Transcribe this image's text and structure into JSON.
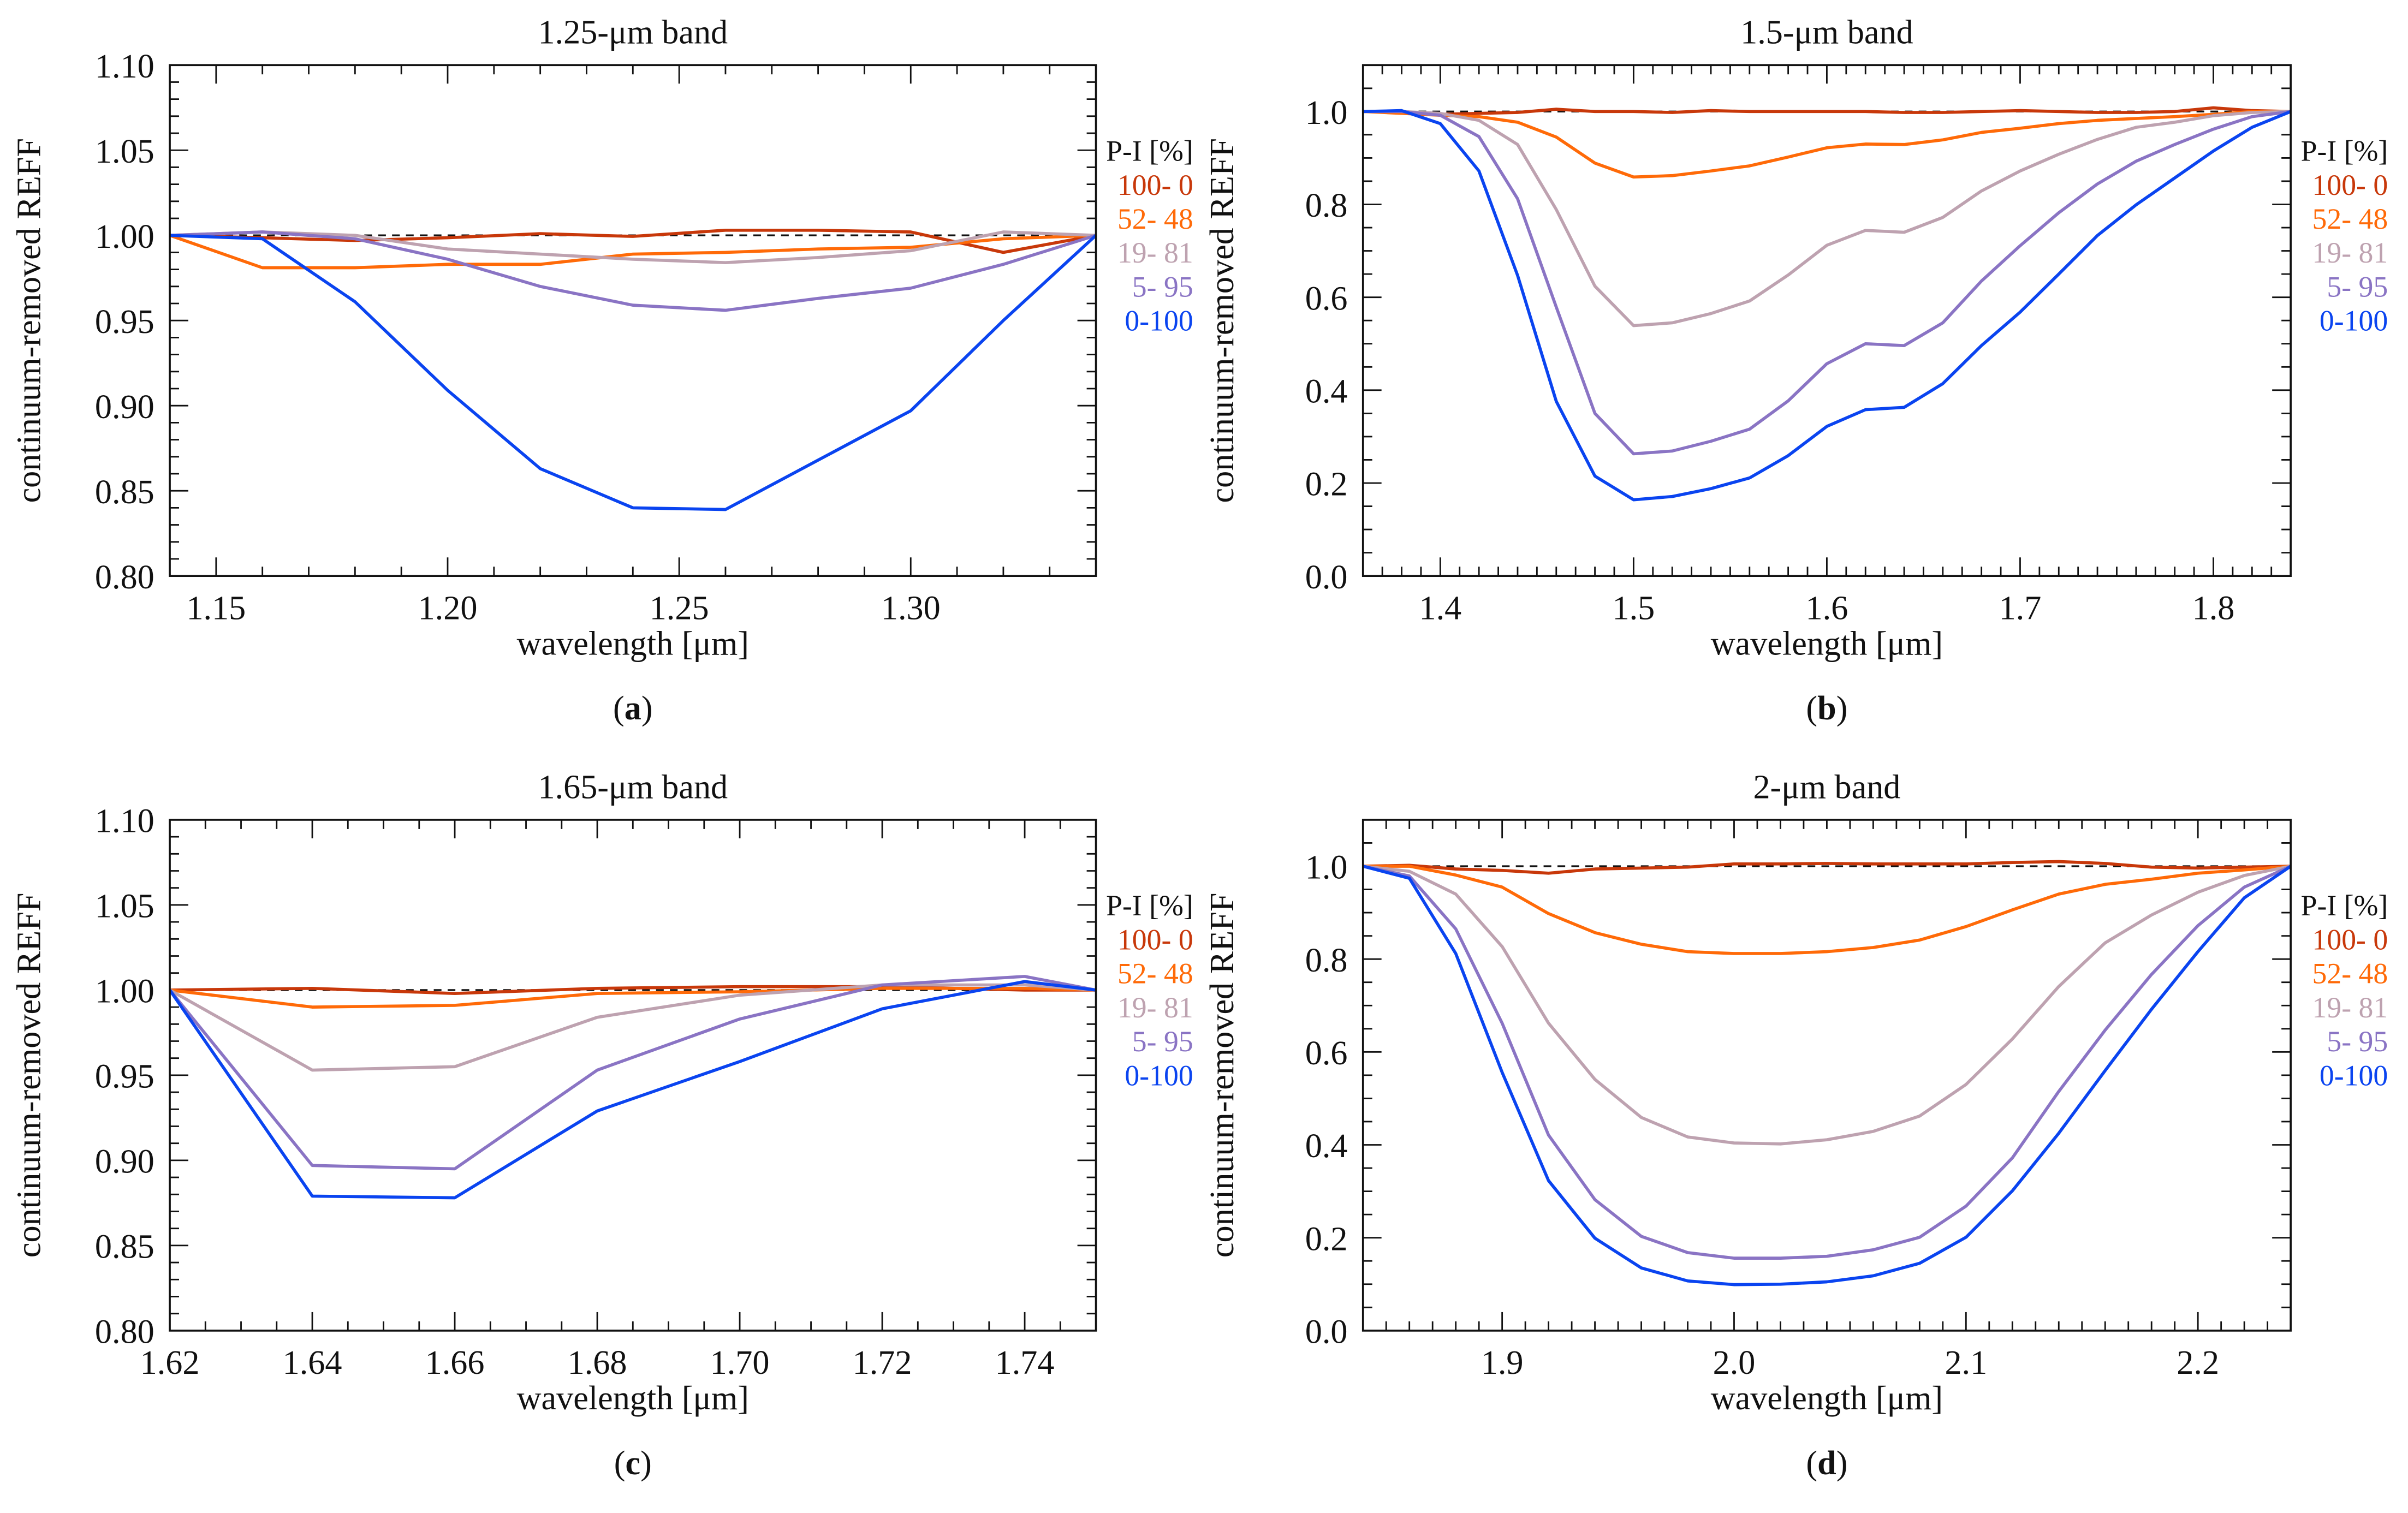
{
  "legend_title": "P-I [%]",
  "series_meta": [
    {
      "name": "100-  0",
      "color": "#c8380a"
    },
    {
      "name": "52- 48",
      "color": "#ff6a08"
    },
    {
      "name": "19- 81",
      "color": "#bea2b0"
    },
    {
      "name": "5- 95",
      "color": "#8a74c4"
    },
    {
      "name": "0-100",
      "color": "#0a44f0"
    }
  ],
  "chart_data": [
    {
      "type": "line",
      "panel": "a",
      "title": "1.25-μm band",
      "xlabel": "wavelength [μm]",
      "ylabel": "continuum-removed REFF",
      "xlim": [
        1.14,
        1.34
      ],
      "ylim": [
        0.8,
        1.1
      ],
      "xticks": [
        1.15,
        1.2,
        1.25,
        1.3
      ],
      "xtick_decimals": 2,
      "xminor": 0.01,
      "yticks": [
        0.8,
        0.85,
        0.9,
        0.95,
        1.0,
        1.05,
        1.1
      ],
      "ytick_decimals": 2,
      "yminor": 0.01,
      "reference_line": 1.0,
      "legend": "right",
      "x": [
        1.14,
        1.16,
        1.18,
        1.2,
        1.22,
        1.24,
        1.26,
        1.28,
        1.3,
        1.32,
        1.34
      ],
      "series": [
        {
          "name": "100-  0",
          "values": [
            1.0,
            0.9986,
            0.997,
            0.9986,
            1.001,
            0.9994,
            1.003,
            1.003,
            1.002,
            0.99,
            1.0
          ]
        },
        {
          "name": "52- 48",
          "values": [
            1.0,
            0.981,
            0.981,
            0.983,
            0.983,
            0.989,
            0.99,
            0.992,
            0.993,
            0.998,
            1.0
          ]
        },
        {
          "name": "19- 81",
          "values": [
            1.0,
            1.002,
            1.0,
            0.992,
            0.989,
            0.986,
            0.984,
            0.987,
            0.991,
            1.002,
            1.0
          ]
        },
        {
          "name": "5- 95",
          "values": [
            1.0,
            1.002,
            0.998,
            0.986,
            0.97,
            0.959,
            0.956,
            0.963,
            0.969,
            0.983,
            1.0
          ]
        },
        {
          "name": "0-100",
          "values": [
            1.0,
            0.998,
            0.961,
            0.909,
            0.863,
            0.84,
            0.839,
            0.868,
            0.897,
            0.95,
            1.0
          ]
        }
      ]
    },
    {
      "type": "line",
      "panel": "b",
      "title": "1.5-μm band",
      "xlabel": "wavelength [μm]",
      "ylabel": "continuum-removed REFF",
      "xlim": [
        1.36,
        1.84
      ],
      "ylim": [
        0.0,
        1.1
      ],
      "xticks": [
        1.4,
        1.5,
        1.6,
        1.7,
        1.8
      ],
      "xtick_decimals": 1,
      "xminor": 0.01,
      "yticks": [
        0.0,
        0.2,
        0.4,
        0.6,
        0.8,
        1.0
      ],
      "ytick_decimals": 1,
      "yminor": 0.05,
      "reference_line": 1.0,
      "legend": "right",
      "x": [
        1.36,
        1.38,
        1.4,
        1.42,
        1.44,
        1.46,
        1.48,
        1.5,
        1.52,
        1.54,
        1.56,
        1.58,
        1.6,
        1.62,
        1.64,
        1.66,
        1.68,
        1.7,
        1.72,
        1.74,
        1.76,
        1.78,
        1.8,
        1.82,
        1.84
      ],
      "series": [
        {
          "name": "100-  0",
          "values": [
            1.0,
            1.0,
            0.994,
            0.996,
            0.998,
            1.005,
            1.0,
            1.0,
            0.998,
            1.002,
            1.0,
            1.0,
            1.0,
            1.0,
            0.998,
            0.998,
            1.0,
            1.002,
            1.0,
            0.998,
            0.998,
            1.0,
            1.008,
            1.002,
            1.0
          ]
        },
        {
          "name": "52- 48",
          "values": [
            1.0,
            0.996,
            0.992,
            0.989,
            0.977,
            0.945,
            0.889,
            0.859,
            0.862,
            0.872,
            0.883,
            0.902,
            0.922,
            0.93,
            0.929,
            0.939,
            0.955,
            0.964,
            0.974,
            0.981,
            0.985,
            0.989,
            0.994,
            1.0,
            1.0
          ]
        },
        {
          "name": "19- 81",
          "values": [
            1.0,
            1.0,
            0.996,
            0.981,
            0.929,
            0.789,
            0.624,
            0.539,
            0.545,
            0.565,
            0.592,
            0.648,
            0.712,
            0.744,
            0.74,
            0.772,
            0.829,
            0.872,
            0.908,
            0.94,
            0.966,
            0.977,
            0.991,
            0.998,
            1.0
          ]
        },
        {
          "name": "5- 95",
          "values": [
            1.0,
            1.0,
            0.992,
            0.946,
            0.812,
            0.579,
            0.35,
            0.263,
            0.269,
            0.29,
            0.316,
            0.377,
            0.457,
            0.5,
            0.496,
            0.545,
            0.635,
            0.711,
            0.782,
            0.844,
            0.893,
            0.929,
            0.962,
            0.989,
            1.0
          ]
        },
        {
          "name": "0-100",
          "values": [
            1.0,
            1.002,
            0.974,
            0.872,
            0.647,
            0.376,
            0.215,
            0.164,
            0.171,
            0.188,
            0.211,
            0.259,
            0.322,
            0.358,
            0.363,
            0.414,
            0.496,
            0.568,
            0.65,
            0.733,
            0.799,
            0.857,
            0.915,
            0.966,
            1.0
          ]
        }
      ]
    },
    {
      "type": "line",
      "panel": "c",
      "title": "1.65-μm band",
      "xlabel": "wavelength [μm]",
      "ylabel": "continuum-removed REFF",
      "xlim": [
        1.62,
        1.75
      ],
      "ylim": [
        0.8,
        1.1
      ],
      "xticks": [
        1.62,
        1.64,
        1.66,
        1.68,
        1.7,
        1.72,
        1.74
      ],
      "xtick_decimals": 2,
      "xminor": 0.005,
      "yticks": [
        0.8,
        0.85,
        0.9,
        0.95,
        1.0,
        1.05,
        1.1
      ],
      "ytick_decimals": 2,
      "yminor": 0.01,
      "reference_line": 1.0,
      "legend": "right",
      "x": [
        1.62,
        1.64,
        1.66,
        1.68,
        1.7,
        1.72,
        1.74,
        1.75
      ],
      "series": [
        {
          "name": "100-  0",
          "values": [
            1.0,
            1.001,
            0.998,
            1.001,
            1.002,
            1.002,
            1.0,
            1.0
          ]
        },
        {
          "name": "52- 48",
          "values": [
            1.0,
            0.99,
            0.991,
            0.998,
            0.999,
            1.001,
            1.001,
            1.0
          ]
        },
        {
          "name": "19- 81",
          "values": [
            1.0,
            0.953,
            0.955,
            0.984,
            0.997,
            1.003,
            1.003,
            1.0
          ]
        },
        {
          "name": "5- 95",
          "values": [
            1.0,
            0.897,
            0.895,
            0.953,
            0.983,
            1.003,
            1.008,
            1.0
          ]
        },
        {
          "name": "0-100",
          "values": [
            1.0,
            0.879,
            0.878,
            0.929,
            0.958,
            0.989,
            1.005,
            1.0
          ]
        }
      ]
    },
    {
      "type": "line",
      "panel": "d",
      "title": "2-μm band",
      "xlabel": "wavelength [μm]",
      "ylabel": "continuum-removed REFF",
      "xlim": [
        1.84,
        2.24
      ],
      "ylim": [
        0.0,
        1.1
      ],
      "xticks": [
        1.9,
        2.0,
        2.1,
        2.2
      ],
      "xtick_decimals": 1,
      "xminor": 0.01,
      "yticks": [
        0.0,
        0.2,
        0.4,
        0.6,
        0.8,
        1.0
      ],
      "ytick_decimals": 1,
      "yminor": 0.05,
      "reference_line": 1.0,
      "legend": "right",
      "x": [
        1.84,
        1.86,
        1.88,
        1.9,
        1.92,
        1.94,
        1.96,
        1.98,
        2.0,
        2.02,
        2.04,
        2.06,
        2.08,
        2.1,
        2.12,
        2.14,
        2.16,
        2.18,
        2.2,
        2.22,
        2.24
      ],
      "series": [
        {
          "name": "100-  0",
          "values": [
            1.0,
            1.002,
            0.994,
            0.991,
            0.985,
            0.994,
            0.996,
            0.998,
            1.005,
            1.005,
            1.006,
            1.005,
            1.005,
            1.005,
            1.008,
            1.01,
            1.006,
            0.998,
            0.996,
            0.998,
            1.0
          ]
        },
        {
          "name": "52- 48",
          "values": [
            1.0,
            1.0,
            0.981,
            0.955,
            0.898,
            0.857,
            0.832,
            0.816,
            0.812,
            0.812,
            0.816,
            0.825,
            0.841,
            0.87,
            0.906,
            0.94,
            0.961,
            0.972,
            0.985,
            0.992,
            1.0
          ]
        },
        {
          "name": "19- 81",
          "values": [
            1.0,
            0.989,
            0.94,
            0.827,
            0.662,
            0.541,
            0.459,
            0.417,
            0.404,
            0.402,
            0.411,
            0.429,
            0.462,
            0.53,
            0.628,
            0.741,
            0.835,
            0.895,
            0.944,
            0.98,
            1.0
          ]
        },
        {
          "name": "5- 95",
          "values": [
            1.0,
            0.979,
            0.865,
            0.662,
            0.421,
            0.282,
            0.203,
            0.168,
            0.156,
            0.156,
            0.16,
            0.174,
            0.201,
            0.268,
            0.372,
            0.515,
            0.647,
            0.767,
            0.872,
            0.955,
            1.0
          ]
        },
        {
          "name": "0-100",
          "values": [
            1.0,
            0.974,
            0.812,
            0.556,
            0.323,
            0.199,
            0.135,
            0.107,
            0.099,
            0.1,
            0.105,
            0.118,
            0.145,
            0.201,
            0.301,
            0.425,
            0.56,
            0.692,
            0.816,
            0.932,
            1.0
          ]
        }
      ]
    }
  ]
}
